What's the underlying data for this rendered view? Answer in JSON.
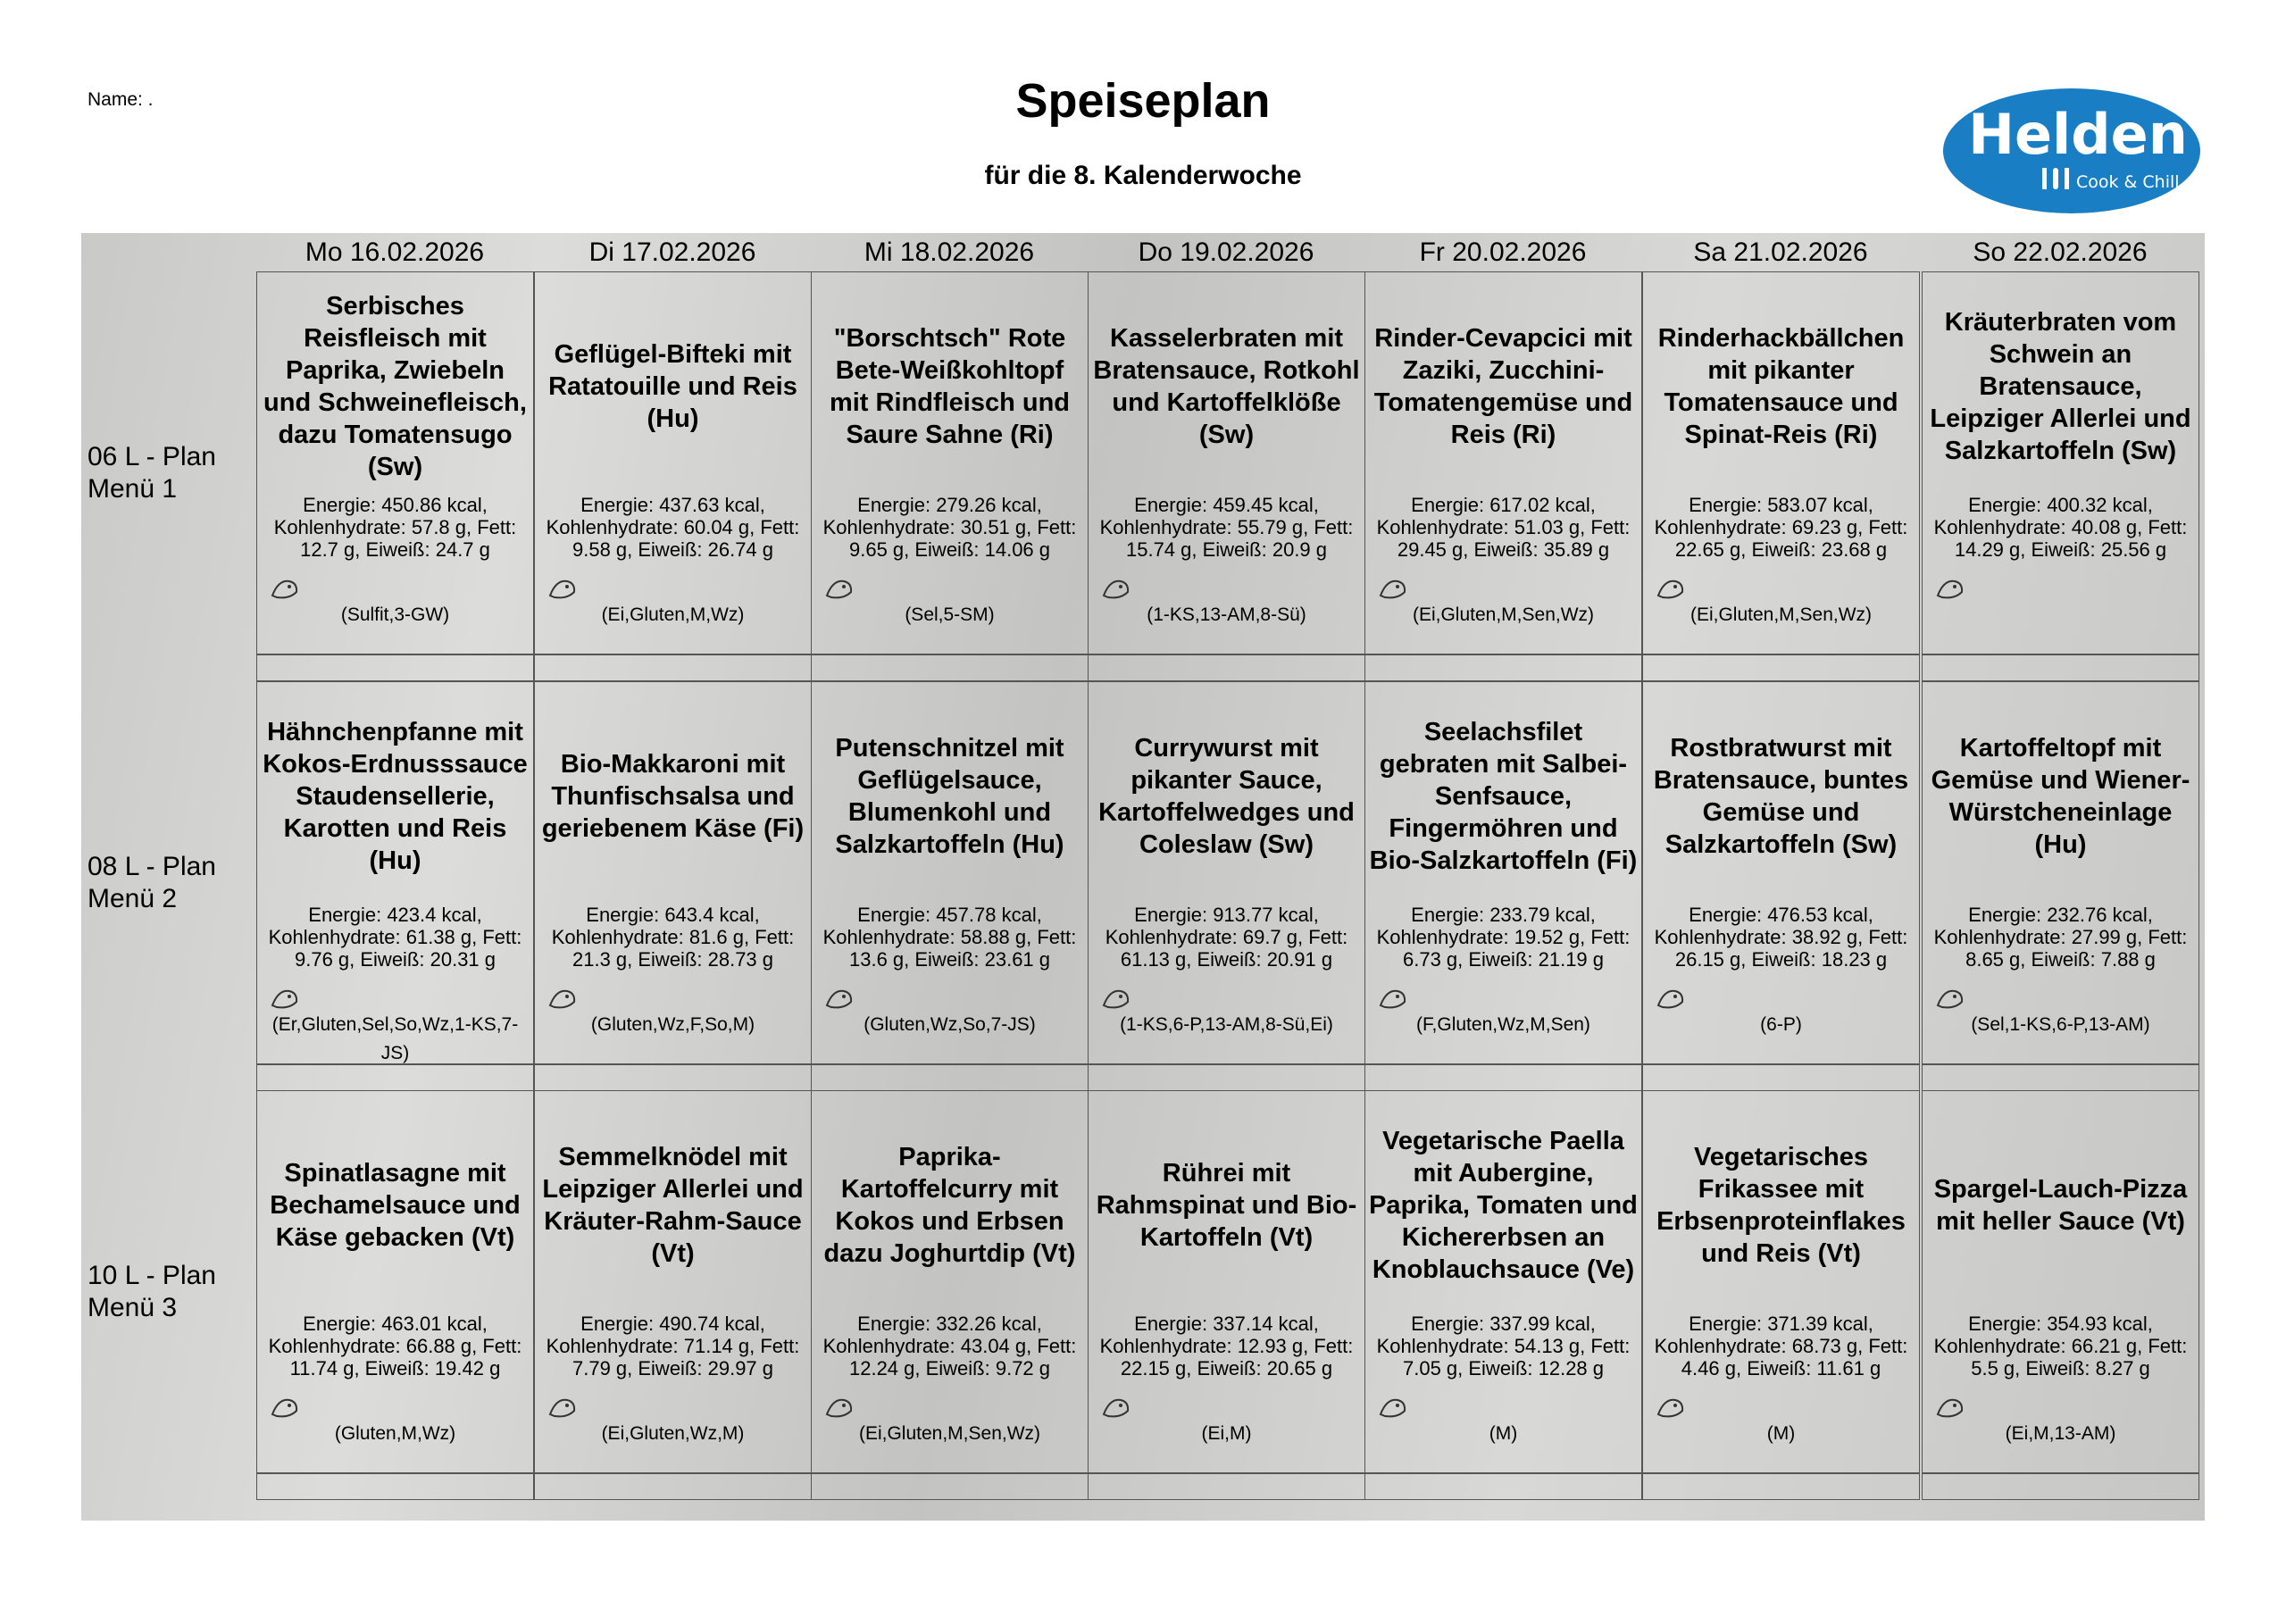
{
  "header": {
    "name": "Name: .",
    "title": "Speiseplan",
    "subtitle": "für die 8. Kalenderwoche",
    "logo": {
      "brand": "Helden",
      "tagline": "Cook & Chill"
    }
  },
  "days": [
    "Mo 16.02.2026",
    "Di 17.02.2026",
    "Mi 18.02.2026",
    "Do 19.02.2026",
    "Fr 20.02.2026",
    "Sa 21.02.2026",
    "So 22.02.2026"
  ],
  "rows": [
    {
      "label": [
        "06 L - Plan",
        "Menü 1"
      ],
      "dishes": [
        {
          "title": "Serbisches Reisfleisch mit Paprika, Zwiebeln und Schweinefleisch, dazu Tomatensugo (Sw)",
          "nutrition": "Energie: 450.86 kcal, Kohlenhydrate: 57.8 g, Fett: 12.7 g, Eiweiß: 24.7 g",
          "allergens": "(Sulfit,3-GW)"
        },
        {
          "title": "Geflügel-Bifteki mit Ratatouille und Reis (Hu)",
          "nutrition": "Energie: 437.63 kcal, Kohlenhydrate: 60.04 g, Fett: 9.58 g, Eiweiß: 26.74 g",
          "allergens": "(Ei,Gluten,M,Wz)"
        },
        {
          "title": "\"Borschtsch\" Rote Bete-Weißkohltopf mit Rindfleisch und Saure Sahne (Ri)",
          "nutrition": "Energie: 279.26 kcal, Kohlenhydrate: 30.51 g, Fett: 9.65 g, Eiweiß: 14.06 g",
          "allergens": "(Sel,5-SM)"
        },
        {
          "title": "Kasselerbraten mit Bratensauce, Rotkohl und Kartoffelklöße (Sw)",
          "nutrition": "Energie: 459.45 kcal, Kohlenhydrate: 55.79 g, Fett: 15.74 g, Eiweiß: 20.9 g",
          "allergens": "(1-KS,13-AM,8-Sü)"
        },
        {
          "title": "Rinder-Cevapcici mit Zaziki, Zucchini-Tomatengemüse und Reis (Ri)",
          "nutrition": "Energie: 617.02 kcal, Kohlenhydrate: 51.03 g, Fett: 29.45 g, Eiweiß: 35.89 g",
          "allergens": "(Ei,Gluten,M,Sen,Wz)"
        },
        {
          "title": "Rinderhackbällchen mit pikanter Tomatensauce und Spinat-Reis (Ri)",
          "nutrition": "Energie: 583.07 kcal, Kohlenhydrate: 69.23 g, Fett: 22.65 g, Eiweiß: 23.68 g",
          "allergens": "(Ei,Gluten,M,Sen,Wz)"
        },
        {
          "title": "Kräuterbraten vom Schwein an Bratensauce, Leipziger Allerlei und Salzkartoffeln (Sw)",
          "nutrition": "Energie: 400.32 kcal, Kohlenhydrate: 40.08 g, Fett: 14.29 g, Eiweiß: 25.56 g"
        }
      ]
    },
    {
      "label": [
        "08 L - Plan",
        "Menü 2"
      ],
      "dishes": [
        {
          "title": "Hähnchenpfanne mit Kokos-Erdnusssauce Staudensellerie, Karotten und Reis (Hu)",
          "nutrition": "Energie: 423.4 kcal, Kohlenhydrate: 61.38 g, Fett: 9.76 g, Eiweiß: 20.31 g",
          "allergens": "(Er,Gluten,Sel,So,Wz,1-KS,7-JS)"
        },
        {
          "title": "Bio-Makkaroni mit Thunfischsalsa und geriebenem Käse (Fi)",
          "nutrition": "Energie: 643.4 kcal, Kohlenhydrate: 81.6 g, Fett: 21.3 g, Eiweiß: 28.73 g",
          "allergens": "(Gluten,Wz,F,So,M)"
        },
        {
          "title": "Putenschnitzel mit Geflügelsauce, Blumenkohl und Salzkartoffeln (Hu)",
          "nutrition": "Energie: 457.78 kcal, Kohlenhydrate: 58.88 g, Fett: 13.6 g, Eiweiß: 23.61 g",
          "allergens": "(Gluten,Wz,So,7-JS)"
        },
        {
          "title": "Currywurst mit pikanter Sauce, Kartoffelwedges und Coleslaw (Sw)",
          "nutrition": "Energie: 913.77 kcal, Kohlenhydrate: 69.7 g, Fett: 61.13 g, Eiweiß: 20.91 g",
          "allergens": "(1-KS,6-P,13-AM,8-Sü,Ei)"
        },
        {
          "title": "Seelachsfilet gebraten mit Salbei-Senfsauce, Fingermöhren und Bio-Salzkartoffeln (Fi)",
          "nutrition": "Energie: 233.79 kcal, Kohlenhydrate: 19.52 g, Fett: 6.73 g, Eiweiß: 21.19 g",
          "allergens": "(F,Gluten,Wz,M,Sen)"
        },
        {
          "title": "Rostbratwurst mit Bratensauce, buntes Gemüse und Salzkartoffeln (Sw)",
          "nutrition": "Energie: 476.53 kcal, Kohlenhydrate: 38.92 g, Fett: 26.15 g, Eiweiß: 18.23 g",
          "allergens": "(6-P)"
        },
        {
          "title": "Kartoffeltopf mit Gemüse und Wiener-Würstcheneinlage (Hu)",
          "nutrition": "Energie: 232.76 kcal, Kohlenhydrate: 27.99 g, Fett: 8.65 g, Eiweiß: 7.88 g",
          "allergens": "(Sel,1-KS,6-P,13-AM)"
        }
      ]
    },
    {
      "label": [
        "10 L - Plan",
        "Menü 3"
      ],
      "dishes": [
        {
          "title": "Spinatlasagne mit Bechamelsauce und Käse gebacken (Vt)",
          "nutrition": "Energie: 463.01 kcal, Kohlenhydrate: 66.88 g, Fett: 11.74 g, Eiweiß: 19.42 g",
          "allergens": "(Gluten,M,Wz)"
        },
        {
          "title": "Semmelknödel mit Leipziger Allerlei und Kräuter-Rahm-Sauce (Vt)",
          "nutrition": "Energie: 490.74 kcal, Kohlenhydrate: 71.14 g, Fett: 7.79 g, Eiweiß: 29.97 g",
          "allergens": "(Ei,Gluten,Wz,M)"
        },
        {
          "title": "Paprika-Kartoffelcurry mit Kokos und Erbsen dazu Joghurtdip (Vt)",
          "nutrition": "Energie: 332.26 kcal, Kohlenhydrate: 43.04 g, Fett: 12.24 g, Eiweiß: 9.72 g",
          "allergens": "(Ei,Gluten,M,Sen,Wz)"
        },
        {
          "title": "Rührei mit Rahmspinat und Bio-Kartoffeln (Vt)",
          "nutrition": "Energie: 337.14 kcal, Kohlenhydrate: 12.93 g, Fett: 22.15 g, Eiweiß: 20.65 g",
          "allergens": "(Ei,M)"
        },
        {
          "title": "Vegetarische Paella mit Aubergine, Paprika, Tomaten und Kichererbsen an Knoblauchsauce (Ve)",
          "nutrition": "Energie: 337.99 kcal, Kohlenhydrate: 54.13 g, Fett: 7.05 g, Eiweiß: 12.28 g",
          "allergens": "(M)"
        },
        {
          "title": "Vegetarisches Frikassee mit Erbsenproteinflakes und Reis (Vt)",
          "nutrition": "Energie: 371.39 kcal, Kohlenhydrate: 68.73 g, Fett: 4.46 g, Eiweiß: 11.61 g",
          "allergens": "(M)"
        },
        {
          "title": "Spargel-Lauch-Pizza mit heller Sauce (Vt)",
          "nutrition": "Energie: 354.93 kcal, Kohlenhydrate: 66.21 g, Fett: 5.5 g, Eiweiß: 8.27 g",
          "allergens": "(Ei,M,13-AM)"
        }
      ]
    }
  ]
}
